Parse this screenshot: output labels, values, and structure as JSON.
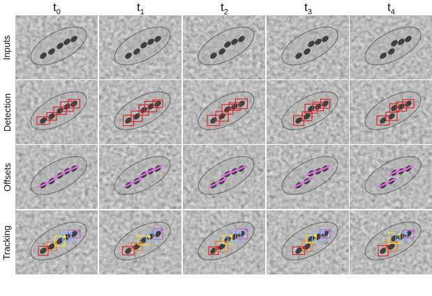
{
  "columns": [
    {
      "base": "t",
      "sub": "0"
    },
    {
      "base": "t",
      "sub": "1"
    },
    {
      "base": "t",
      "sub": "2"
    },
    {
      "base": "t",
      "sub": "3"
    },
    {
      "base": "t",
      "sub": "4"
    }
  ],
  "rows": [
    {
      "label": "Inputs",
      "overlay": "none"
    },
    {
      "label": "Detection",
      "overlay": "boxes"
    },
    {
      "label": "Offsets",
      "overlay": "arrows"
    },
    {
      "label": "Tracking",
      "overlay": "tracks"
    }
  ],
  "colors": {
    "detection_box": "#d8262b",
    "offset_arrow": "#e06ee6",
    "track_colors": [
      "#d8262b",
      "#e07a2a",
      "#f2e33a",
      "#7fb2ff",
      "#b06ad9",
      "#5ad66a"
    ]
  }
}
